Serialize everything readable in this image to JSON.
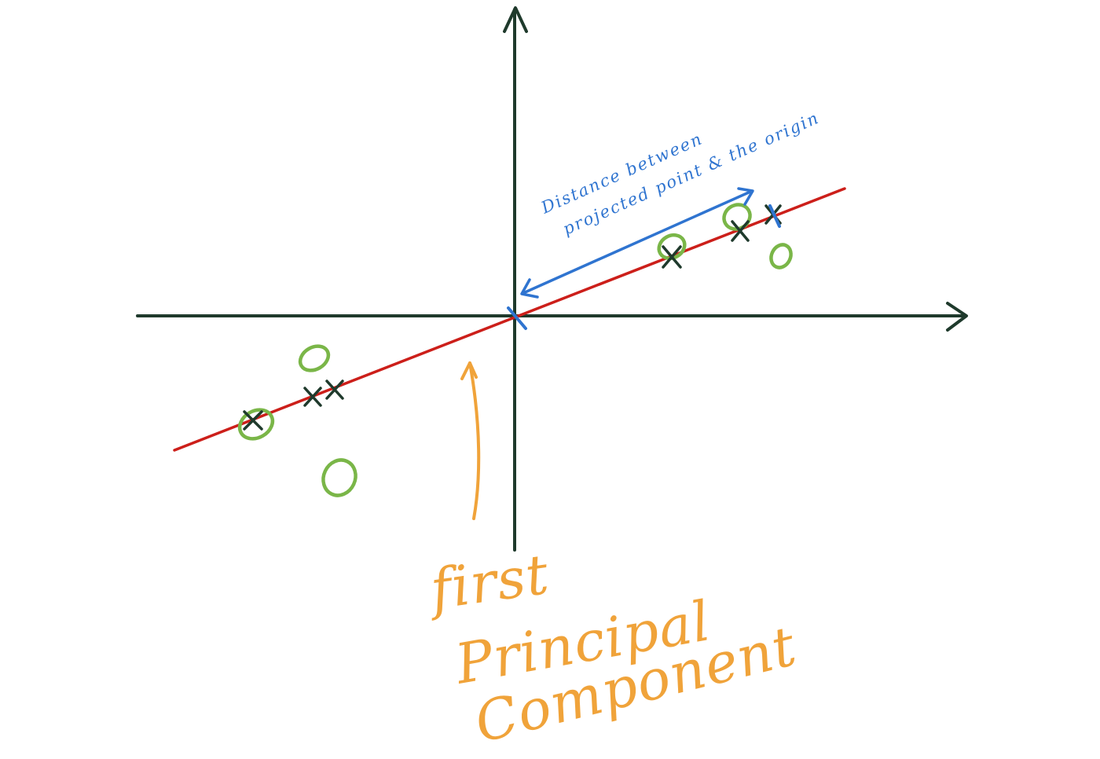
{
  "colors": {
    "axis": "#1f3a2c",
    "first_principal_component_line": "#cc1f1a",
    "original_points": "#7ab648",
    "projected_points": "#1f3a2c",
    "distance_annotation": "#2f74d0",
    "label": "#f0a33a",
    "background": "#ffffff"
  },
  "annotation": {
    "line1": "Distance between",
    "line2": "projected point & the origin"
  },
  "label": {
    "line1": "first",
    "line2": "Principal",
    "line3": "Component"
  },
  "icons": {
    "original_point": "green-circle",
    "projected_point": "dark-x-mark",
    "origin_marker": "blue-tick"
  }
}
